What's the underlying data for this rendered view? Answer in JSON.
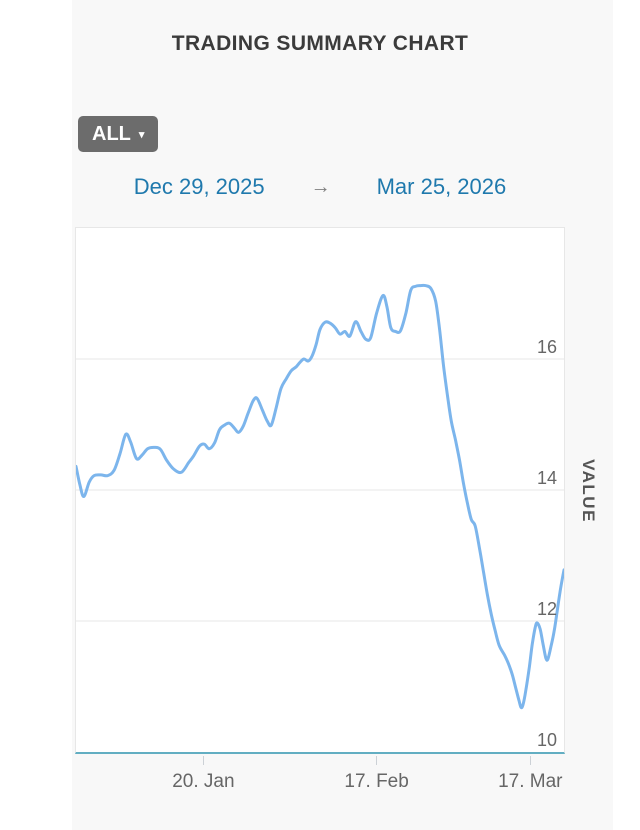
{
  "header": {
    "title": "TRADING SUMMARY CHART"
  },
  "controls": {
    "range_button": {
      "label": "ALL",
      "caret": "▾"
    },
    "date_range": {
      "start": "Dec 29, 2025",
      "arrow": "→",
      "end": "Mar 25, 2026"
    }
  },
  "chart_data": {
    "type": "line",
    "title": "",
    "xlabel": "",
    "ylabel": "VALUE",
    "x_start": "Dec 29, 2025",
    "x_end": "Mar 25, 2026",
    "ylim": [
      10,
      18
    ],
    "grid": "horizontal",
    "legend": "none",
    "x_ticks": [
      {
        "t": 0.261,
        "label": "20. Jan"
      },
      {
        "t": 0.616,
        "label": "17. Feb"
      },
      {
        "t": 0.931,
        "label": "17. Mar"
      }
    ],
    "y_ticks": [
      {
        "value": 10,
        "label": "10"
      },
      {
        "value": 12,
        "label": "12"
      },
      {
        "value": 14,
        "label": "14"
      },
      {
        "value": 16,
        "label": "16"
      }
    ],
    "series": [
      {
        "name": "VALUE",
        "color": "#7cb5ec",
        "points": [
          [
            0.0,
            14.36
          ],
          [
            0.008,
            14.08
          ],
          [
            0.016,
            13.9
          ],
          [
            0.027,
            14.12
          ],
          [
            0.037,
            14.22
          ],
          [
            0.051,
            14.23
          ],
          [
            0.065,
            14.22
          ],
          [
            0.078,
            14.3
          ],
          [
            0.09,
            14.55
          ],
          [
            0.102,
            14.85
          ],
          [
            0.112,
            14.73
          ],
          [
            0.124,
            14.48
          ],
          [
            0.135,
            14.53
          ],
          [
            0.147,
            14.63
          ],
          [
            0.161,
            14.65
          ],
          [
            0.173,
            14.62
          ],
          [
            0.186,
            14.45
          ],
          [
            0.2,
            14.32
          ],
          [
            0.216,
            14.27
          ],
          [
            0.231,
            14.42
          ],
          [
            0.241,
            14.52
          ],
          [
            0.253,
            14.67
          ],
          [
            0.263,
            14.7
          ],
          [
            0.273,
            14.63
          ],
          [
            0.284,
            14.72
          ],
          [
            0.294,
            14.92
          ],
          [
            0.304,
            14.99
          ],
          [
            0.314,
            15.02
          ],
          [
            0.324,
            14.95
          ],
          [
            0.333,
            14.88
          ],
          [
            0.343,
            14.98
          ],
          [
            0.353,
            15.18
          ],
          [
            0.363,
            15.36
          ],
          [
            0.371,
            15.4
          ],
          [
            0.382,
            15.22
          ],
          [
            0.392,
            15.05
          ],
          [
            0.4,
            14.99
          ],
          [
            0.41,
            15.25
          ],
          [
            0.42,
            15.55
          ],
          [
            0.431,
            15.7
          ],
          [
            0.441,
            15.82
          ],
          [
            0.451,
            15.88
          ],
          [
            0.459,
            15.95
          ],
          [
            0.467,
            16.0
          ],
          [
            0.476,
            15.97
          ],
          [
            0.484,
            16.05
          ],
          [
            0.492,
            16.22
          ],
          [
            0.5,
            16.45
          ],
          [
            0.51,
            16.56
          ],
          [
            0.52,
            16.55
          ],
          [
            0.531,
            16.48
          ],
          [
            0.541,
            16.38
          ],
          [
            0.551,
            16.42
          ],
          [
            0.561,
            16.35
          ],
          [
            0.573,
            16.57
          ],
          [
            0.584,
            16.42
          ],
          [
            0.594,
            16.3
          ],
          [
            0.604,
            16.33
          ],
          [
            0.616,
            16.7
          ],
          [
            0.629,
            16.97
          ],
          [
            0.637,
            16.8
          ],
          [
            0.645,
            16.48
          ],
          [
            0.655,
            16.42
          ],
          [
            0.665,
            16.43
          ],
          [
            0.676,
            16.7
          ],
          [
            0.686,
            17.05
          ],
          [
            0.696,
            17.11
          ],
          [
            0.706,
            17.12
          ],
          [
            0.716,
            17.12
          ],
          [
            0.727,
            17.08
          ],
          [
            0.737,
            16.88
          ],
          [
            0.745,
            16.45
          ],
          [
            0.753,
            15.9
          ],
          [
            0.761,
            15.45
          ],
          [
            0.769,
            15.05
          ],
          [
            0.778,
            14.75
          ],
          [
            0.786,
            14.45
          ],
          [
            0.794,
            14.1
          ],
          [
            0.802,
            13.8
          ],
          [
            0.81,
            13.55
          ],
          [
            0.818,
            13.45
          ],
          [
            0.827,
            13.1
          ],
          [
            0.835,
            12.75
          ],
          [
            0.843,
            12.4
          ],
          [
            0.851,
            12.1
          ],
          [
            0.859,
            11.85
          ],
          [
            0.867,
            11.63
          ],
          [
            0.878,
            11.48
          ],
          [
            0.886,
            11.35
          ],
          [
            0.894,
            11.18
          ],
          [
            0.902,
            10.95
          ],
          [
            0.908,
            10.78
          ],
          [
            0.912,
            10.68
          ],
          [
            0.916,
            10.72
          ],
          [
            0.922,
            10.95
          ],
          [
            0.929,
            11.3
          ],
          [
            0.935,
            11.65
          ],
          [
            0.941,
            11.9
          ],
          [
            0.945,
            11.97
          ],
          [
            0.951,
            11.88
          ],
          [
            0.957,
            11.65
          ],
          [
            0.963,
            11.43
          ],
          [
            0.967,
            11.42
          ],
          [
            0.973,
            11.6
          ],
          [
            0.98,
            11.85
          ],
          [
            0.986,
            12.15
          ],
          [
            0.992,
            12.45
          ],
          [
            1.0,
            12.78
          ]
        ]
      }
    ]
  },
  "colors": {
    "page_bg": "#ffffff",
    "panel_bg": "#f8f8f8",
    "plot_bg": "#ffffff",
    "plot_border": "#e7e7e7",
    "gridline": "#e7e7e7",
    "axis_line": "#62aec2",
    "tick_mark": "#ccd1d6",
    "tick_label": "#666666",
    "title_text": "#3b3b3b",
    "date_link": "#1f79ad",
    "arrow": "#7f7f7f",
    "button_bg": "#6c6c6c",
    "button_text": "#ffffff",
    "series_line": "#7cb5ec"
  }
}
